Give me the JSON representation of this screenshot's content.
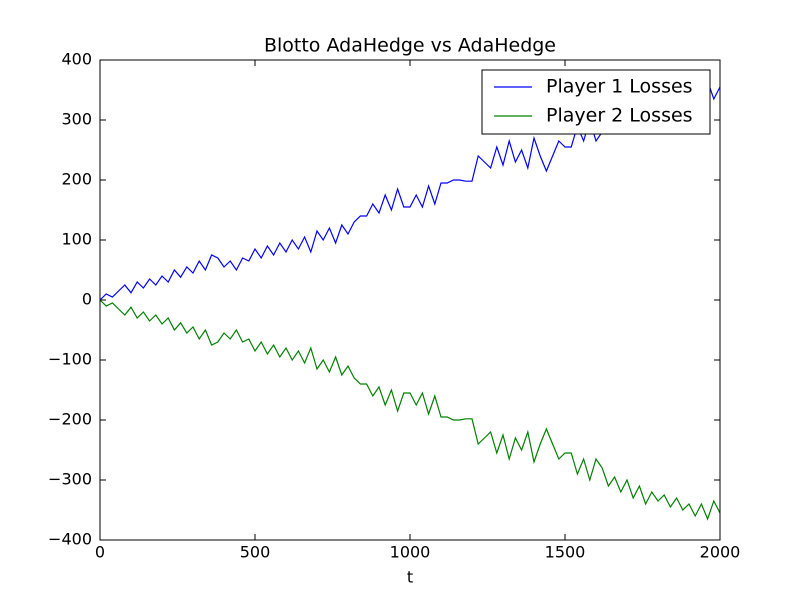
{
  "chart_data": {
    "type": "line",
    "title": "Blotto AdaHedge vs AdaHedge",
    "x_label": "t",
    "x": [
      0,
      20,
      40,
      60,
      80,
      100,
      120,
      140,
      160,
      180,
      200,
      220,
      240,
      260,
      280,
      300,
      320,
      340,
      360,
      380,
      400,
      420,
      440,
      460,
      480,
      500,
      520,
      540,
      560,
      580,
      600,
      620,
      640,
      660,
      680,
      700,
      720,
      740,
      760,
      780,
      800,
      820,
      840,
      860,
      880,
      900,
      920,
      940,
      960,
      980,
      1000,
      1020,
      1040,
      1060,
      1080,
      1100,
      1120,
      1140,
      1160,
      1180,
      1200,
      1220,
      1240,
      1260,
      1280,
      1300,
      1320,
      1340,
      1360,
      1380,
      1400,
      1420,
      1440,
      1460,
      1480,
      1500,
      1520,
      1540,
      1560,
      1580,
      1600,
      1620,
      1640,
      1660,
      1680,
      1700,
      1720,
      1740,
      1760,
      1780,
      1800,
      1820,
      1840,
      1860,
      1880,
      1900,
      1920,
      1940,
      1960,
      1980,
      2000
    ],
    "series": [
      {
        "name": "Player 1 Losses",
        "color": "#0000ff",
        "values": [
          0,
          10,
          5,
          15,
          25,
          12,
          30,
          20,
          35,
          25,
          40,
          30,
          50,
          38,
          55,
          45,
          65,
          50,
          75,
          70,
          55,
          65,
          50,
          70,
          65,
          85,
          70,
          90,
          75,
          95,
          80,
          100,
          85,
          105,
          80,
          115,
          100,
          120,
          95,
          125,
          110,
          130,
          140,
          140,
          160,
          145,
          175,
          150,
          185,
          155,
          155,
          175,
          155,
          190,
          160,
          195,
          195,
          200,
          200,
          198,
          198,
          240,
          230,
          220,
          255,
          225,
          265,
          230,
          250,
          220,
          270,
          240,
          215,
          240,
          265,
          255,
          255,
          290,
          265,
          300,
          265,
          280,
          310,
          295,
          320,
          300,
          330,
          310,
          340,
          320,
          335,
          325,
          345,
          330,
          350,
          340,
          360,
          340,
          365,
          335,
          355
        ]
      },
      {
        "name": "Player 2 Losses",
        "color": "#008000",
        "values": [
          0,
          -10,
          -5,
          -15,
          -25,
          -12,
          -30,
          -20,
          -35,
          -25,
          -40,
          -30,
          -50,
          -38,
          -55,
          -45,
          -65,
          -50,
          -75,
          -70,
          -55,
          -65,
          -50,
          -70,
          -65,
          -85,
          -70,
          -90,
          -75,
          -95,
          -80,
          -100,
          -85,
          -105,
          -80,
          -115,
          -100,
          -120,
          -95,
          -125,
          -110,
          -130,
          -140,
          -140,
          -160,
          -145,
          -175,
          -150,
          -185,
          -155,
          -155,
          -175,
          -155,
          -190,
          -160,
          -195,
          -195,
          -200,
          -200,
          -198,
          -198,
          -240,
          -230,
          -220,
          -255,
          -225,
          -265,
          -230,
          -250,
          -220,
          -270,
          -240,
          -215,
          -240,
          -265,
          -255,
          -255,
          -290,
          -265,
          -300,
          -265,
          -280,
          -310,
          -295,
          -320,
          -300,
          -330,
          -310,
          -340,
          -320,
          -335,
          -325,
          -345,
          -330,
          -350,
          -340,
          -360,
          -340,
          -365,
          -335,
          -355
        ]
      }
    ],
    "xlim": [
      0,
      2000
    ],
    "xticks": [
      0,
      500,
      1000,
      1500,
      2000
    ],
    "ylim": [
      -400,
      400
    ],
    "yticks": [
      {
        "value": -400,
        "label": "−400"
      },
      {
        "value": -300,
        "label": "−300"
      },
      {
        "value": -200,
        "label": "−200"
      },
      {
        "value": -100,
        "label": "−100"
      },
      0,
      100,
      200,
      300,
      400
    ],
    "grid": false,
    "legend": "upper right"
  }
}
